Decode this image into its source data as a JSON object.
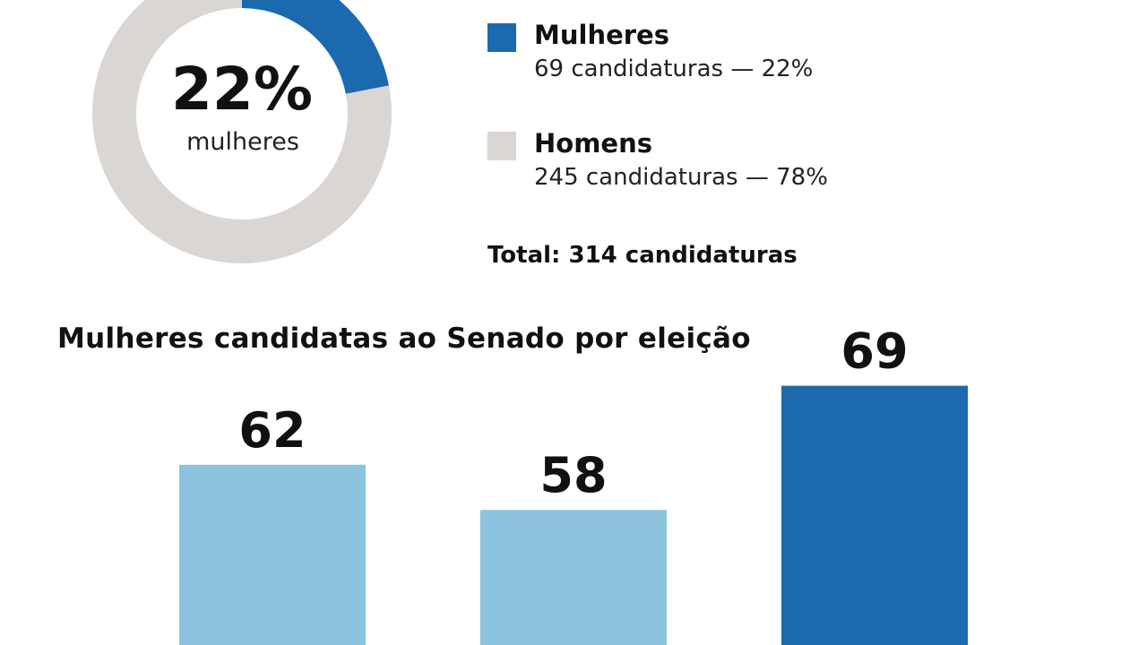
{
  "chart_data": [
    {
      "type": "pie",
      "donut": true,
      "center_value": "22%",
      "center_label": "mulheres",
      "slices": [
        {
          "name": "Mulheres",
          "value": 69,
          "percent": 22,
          "detail": "69 candidaturas — 22%",
          "color": "#1c6aae"
        },
        {
          "name": "Homens",
          "value": 245,
          "percent": 78,
          "detail": "245 candidaturas — 78%",
          "color": "#d9d6d3"
        }
      ],
      "total_text": "Total: 314 candidaturas"
    },
    {
      "type": "bar",
      "title": "Mulheres candidatas ao Senado por eleição",
      "categories": [
        "",
        "",
        ""
      ],
      "values": [
        62,
        58,
        69
      ],
      "data_labels": [
        "62",
        "58",
        "69"
      ],
      "colors": [
        "#8cc3de",
        "#8cc3de",
        "#1c6aae"
      ],
      "ylim": [
        0,
        100
      ]
    }
  ]
}
